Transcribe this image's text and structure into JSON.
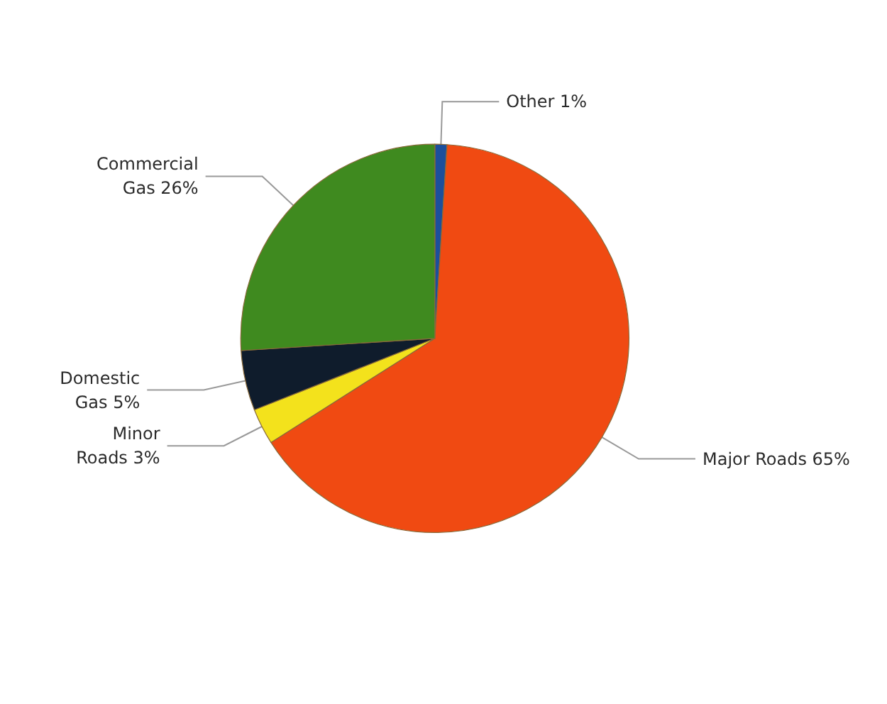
{
  "chart_data": {
    "type": "pie",
    "categories": [
      "Other",
      "Major Roads",
      "Minor Roads",
      "Domestic Gas",
      "Commercial Gas"
    ],
    "values": [
      1,
      65,
      3,
      5,
      26
    ],
    "colors": [
      "#1c4f9c",
      "#f04a12",
      "#f3e21c",
      "#0f1c2c",
      "#3f8a1f"
    ],
    "value_labels": [
      "1%",
      "65%",
      "3%",
      "5%",
      "26%"
    ],
    "legend": false
  }
}
